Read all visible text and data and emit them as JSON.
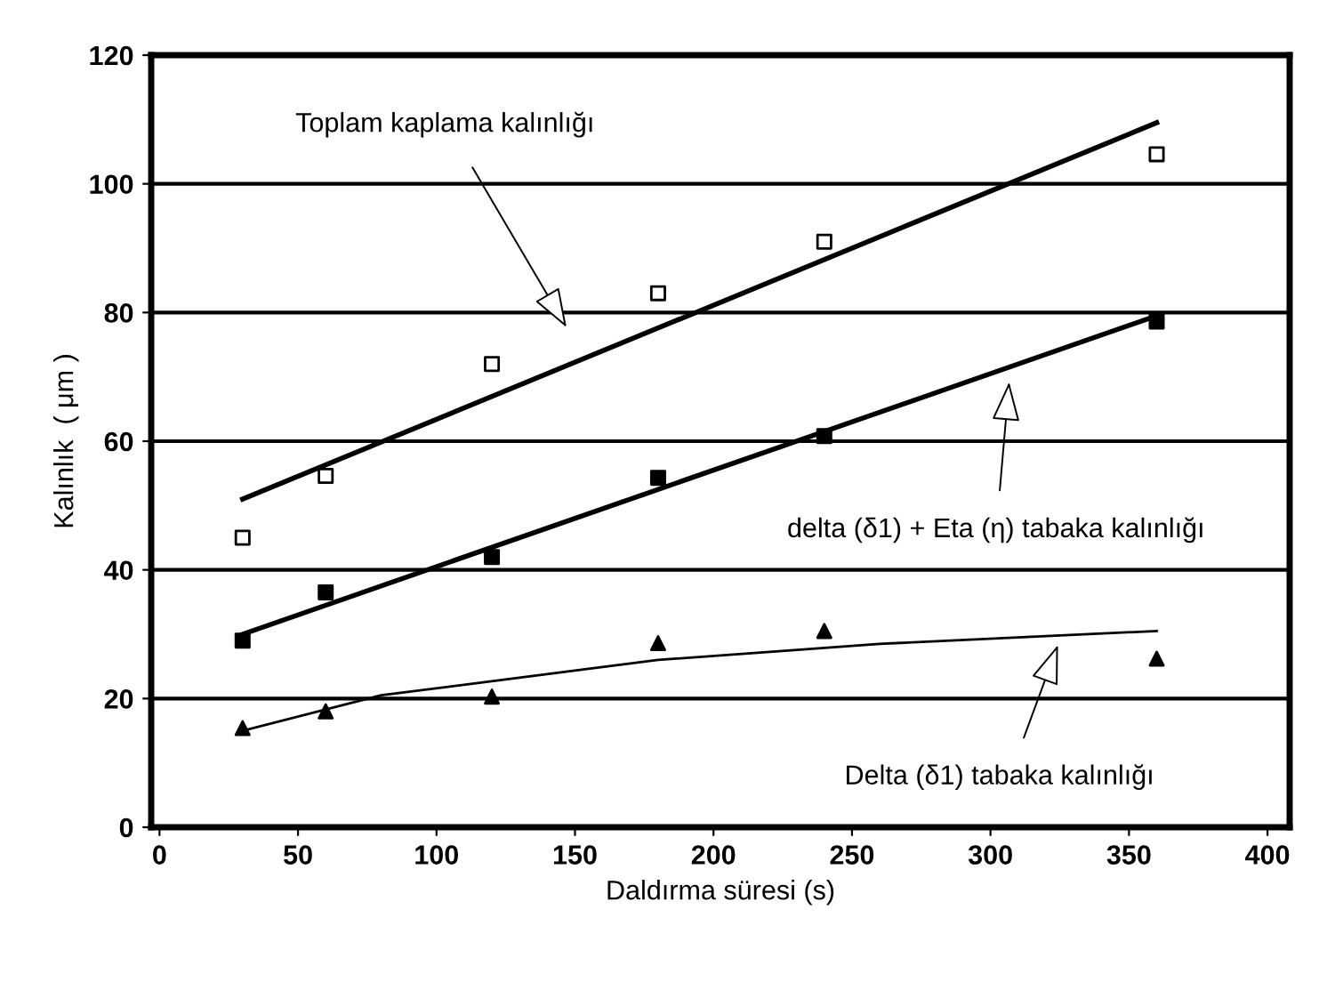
{
  "chart_data": {
    "type": "scatter",
    "xlabel": "Daldırma süresi (s)",
    "ylabel": "Kalınlık  ( μm )",
    "x": [
      30,
      60,
      120,
      180,
      240,
      360
    ],
    "series": [
      {
        "marker": "square",
        "color": "#ffffff",
        "values": [
          45,
          54.6,
          72,
          83,
          91,
          104.6
        ]
      },
      {
        "marker": "square",
        "color": "#000000",
        "values": [
          29,
          36.5,
          42,
          54.3,
          60.8,
          78.6
        ]
      },
      {
        "marker": "triangle",
        "color": "#000000",
        "values": [
          15.4,
          18,
          20.3,
          28.6,
          30.5,
          26.2
        ]
      },
      {
        "type": "line",
        "color": "#000000",
        "x": [
          30,
          360
        ],
        "values": [
          51,
          109.5
        ]
      },
      {
        "type": "line",
        "color": "#000000",
        "x": [
          30,
          360
        ],
        "values": [
          30,
          79.5
        ]
      },
      {
        "type": "line",
        "color": "#000000",
        "x": [
          30,
          80,
          180,
          260,
          360
        ],
        "values": [
          15,
          20.5,
          26,
          28.5,
          30.5
        ]
      }
    ],
    "annotations": [
      "Toplam kaplama kalınlığı",
      "delta (δ1) + Eta (η) tabaka kalınlığı",
      "Delta (δ1) tabaka kalınlığı"
    ],
    "xlim": [
      -3,
      408
    ],
    "ylim": [
      0,
      120
    ],
    "xticks": [
      0,
      50,
      100,
      150,
      200,
      250,
      300,
      350,
      400
    ],
    "yticks": [
      0,
      20,
      40,
      60,
      80,
      100,
      120
    ],
    "grid": "y",
    "legend": false
  }
}
